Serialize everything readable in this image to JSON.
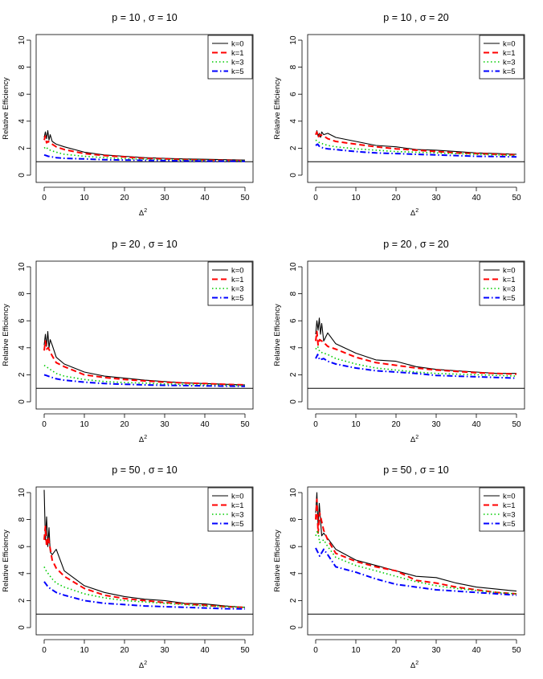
{
  "page": {
    "rows": 3,
    "cols": 2
  },
  "chart_data": [
    {
      "type": "line",
      "title": "p = 10 , σ = 10",
      "xlabel": "Δ",
      "xlabel_sup": "2",
      "ylabel": "Relative Efficiency",
      "xlim": [
        0,
        50
      ],
      "ylim": [
        0,
        10
      ],
      "xticks": [
        0,
        10,
        20,
        30,
        40,
        50
      ],
      "yticks": [
        0,
        2,
        4,
        6,
        8,
        10
      ],
      "reference_line": 1,
      "legend_position": "top-right",
      "series": [
        {
          "name": "k=0",
          "color": "#000000",
          "dash": "solid",
          "x": [
            0,
            0.3,
            0.6,
            0.9,
            1.2,
            1.5,
            2,
            3,
            5,
            10,
            15,
            20,
            25,
            30,
            35,
            40,
            45,
            50
          ],
          "y": [
            2.8,
            3.2,
            2.7,
            3.3,
            2.6,
            3.0,
            2.5,
            2.3,
            2.1,
            1.7,
            1.5,
            1.4,
            1.3,
            1.25,
            1.2,
            1.18,
            1.15,
            1.12
          ]
        },
        {
          "name": "k=1",
          "color": "#ff0000",
          "dash": "dashed",
          "x": [
            0,
            0.3,
            0.6,
            1,
            2,
            3,
            5,
            10,
            15,
            20,
            25,
            30,
            35,
            40,
            45,
            50
          ],
          "y": [
            2.6,
            2.9,
            2.4,
            2.5,
            2.3,
            2.1,
            1.9,
            1.6,
            1.45,
            1.35,
            1.25,
            1.2,
            1.15,
            1.12,
            1.1,
            1.08
          ]
        },
        {
          "name": "k=3",
          "color": "#00cc00",
          "dash": "dotted",
          "x": [
            0,
            0.5,
            1,
            2,
            3,
            5,
            10,
            15,
            20,
            25,
            30,
            35,
            40,
            45,
            50
          ],
          "y": [
            2.0,
            2.1,
            1.9,
            1.8,
            1.7,
            1.55,
            1.4,
            1.3,
            1.22,
            1.18,
            1.14,
            1.12,
            1.1,
            1.08,
            1.06
          ]
        },
        {
          "name": "k=5",
          "color": "#0000ff",
          "dash": "dotdash",
          "x": [
            0,
            0.5,
            1,
            2,
            3,
            5,
            10,
            15,
            20,
            25,
            30,
            35,
            40,
            45,
            50
          ],
          "y": [
            1.5,
            1.45,
            1.4,
            1.35,
            1.3,
            1.25,
            1.2,
            1.15,
            1.12,
            1.1,
            1.08,
            1.06,
            1.05,
            1.04,
            1.03
          ]
        }
      ]
    },
    {
      "type": "line",
      "title": "p = 10 , σ = 20",
      "xlabel": "Δ",
      "xlabel_sup": "2",
      "ylabel": "Relative Efficiency",
      "xlim": [
        0,
        50
      ],
      "ylim": [
        0,
        10
      ],
      "xticks": [
        0,
        10,
        20,
        30,
        40,
        50
      ],
      "yticks": [
        0,
        2,
        4,
        6,
        8,
        10
      ],
      "reference_line": 1,
      "legend_position": "top-right",
      "series": [
        {
          "name": "k=0",
          "color": "#000000",
          "dash": "solid",
          "x": [
            0,
            0.3,
            0.6,
            0.9,
            1.2,
            1.5,
            2,
            3,
            5,
            10,
            15,
            20,
            25,
            30,
            35,
            40,
            45,
            50
          ],
          "y": [
            3.0,
            3.3,
            2.9,
            3.1,
            2.8,
            3.2,
            3.0,
            3.1,
            2.8,
            2.5,
            2.2,
            2.1,
            1.9,
            1.85,
            1.75,
            1.65,
            1.6,
            1.55
          ]
        },
        {
          "name": "k=1",
          "color": "#ff0000",
          "dash": "dashed",
          "x": [
            0,
            0.3,
            0.6,
            1,
            2,
            3,
            5,
            10,
            15,
            20,
            25,
            30,
            35,
            40,
            45,
            50
          ],
          "y": [
            3.0,
            3.2,
            2.8,
            3.0,
            2.9,
            2.7,
            2.5,
            2.3,
            2.1,
            1.95,
            1.85,
            1.75,
            1.65,
            1.6,
            1.55,
            1.5
          ]
        },
        {
          "name": "k=3",
          "color": "#00cc00",
          "dash": "dotted",
          "x": [
            0,
            0.5,
            1,
            2,
            3,
            5,
            10,
            15,
            20,
            25,
            30,
            35,
            40,
            45,
            50
          ],
          "y": [
            2.6,
            2.5,
            2.4,
            2.3,
            2.2,
            2.1,
            1.95,
            1.85,
            1.75,
            1.7,
            1.65,
            1.6,
            1.55,
            1.5,
            1.45
          ]
        },
        {
          "name": "k=5",
          "color": "#0000ff",
          "dash": "dotdash",
          "x": [
            0,
            0.5,
            1,
            2,
            3,
            5,
            10,
            15,
            20,
            25,
            30,
            35,
            40,
            45,
            50
          ],
          "y": [
            2.2,
            2.3,
            2.1,
            2.0,
            1.95,
            1.9,
            1.75,
            1.65,
            1.6,
            1.55,
            1.5,
            1.45,
            1.4,
            1.38,
            1.35
          ]
        }
      ]
    },
    {
      "type": "line",
      "title": "p = 20 , σ = 10",
      "xlabel": "Δ",
      "xlabel_sup": "2",
      "ylabel": "Relative Efficiency",
      "xlim": [
        0,
        50
      ],
      "ylim": [
        0,
        10
      ],
      "xticks": [
        0,
        10,
        20,
        30,
        40,
        50
      ],
      "yticks": [
        0,
        2,
        4,
        6,
        8,
        10
      ],
      "reference_line": 1,
      "legend_position": "top-right",
      "series": [
        {
          "name": "k=0",
          "color": "#000000",
          "dash": "solid",
          "x": [
            0,
            0.3,
            0.6,
            0.9,
            1.2,
            1.5,
            2,
            3,
            5,
            10,
            15,
            20,
            25,
            30,
            35,
            40,
            45,
            50
          ],
          "y": [
            4.2,
            5.0,
            4.1,
            5.2,
            4.0,
            4.6,
            4.2,
            3.3,
            2.8,
            2.2,
            1.9,
            1.75,
            1.6,
            1.5,
            1.4,
            1.35,
            1.3,
            1.25
          ]
        },
        {
          "name": "k=1",
          "color": "#ff0000",
          "dash": "dashed",
          "x": [
            0,
            0.3,
            0.6,
            1,
            2,
            3,
            5,
            10,
            15,
            20,
            25,
            30,
            35,
            40,
            45,
            50
          ],
          "y": [
            3.8,
            4.5,
            3.9,
            4.0,
            3.4,
            2.9,
            2.6,
            2.0,
            1.8,
            1.65,
            1.55,
            1.45,
            1.4,
            1.35,
            1.3,
            1.25
          ]
        },
        {
          "name": "k=3",
          "color": "#00cc00",
          "dash": "dotted",
          "x": [
            0,
            0.5,
            1,
            2,
            3,
            5,
            10,
            15,
            20,
            25,
            30,
            35,
            40,
            45,
            50
          ],
          "y": [
            2.7,
            2.6,
            2.5,
            2.3,
            2.1,
            1.9,
            1.65,
            1.5,
            1.42,
            1.38,
            1.32,
            1.28,
            1.25,
            1.22,
            1.2
          ]
        },
        {
          "name": "k=5",
          "color": "#0000ff",
          "dash": "dotdash",
          "x": [
            0,
            0.5,
            1,
            2,
            3,
            5,
            10,
            15,
            20,
            25,
            30,
            35,
            40,
            45,
            50
          ],
          "y": [
            2.0,
            1.95,
            1.9,
            1.8,
            1.7,
            1.6,
            1.45,
            1.35,
            1.3,
            1.25,
            1.22,
            1.2,
            1.18,
            1.16,
            1.15
          ]
        }
      ]
    },
    {
      "type": "line",
      "title": "p = 20 , σ = 20",
      "xlabel": "Δ",
      "xlabel_sup": "2",
      "ylabel": "Relative Efficiency",
      "xlim": [
        0,
        50
      ],
      "ylim": [
        0,
        10
      ],
      "xticks": [
        0,
        10,
        20,
        30,
        40,
        50
      ],
      "yticks": [
        0,
        2,
        4,
        6,
        8,
        10
      ],
      "reference_line": 1,
      "legend_position": "top-right",
      "series": [
        {
          "name": "k=0",
          "color": "#000000",
          "dash": "solid",
          "x": [
            0,
            0.3,
            0.6,
            0.9,
            1.2,
            1.5,
            2,
            3,
            5,
            10,
            15,
            20,
            25,
            30,
            35,
            40,
            45,
            50
          ],
          "y": [
            5.0,
            6.0,
            5.3,
            6.2,
            5.0,
            5.8,
            4.5,
            5.1,
            4.3,
            3.6,
            3.1,
            3.0,
            2.6,
            2.4,
            2.3,
            2.2,
            2.1,
            2.1
          ]
        },
        {
          "name": "k=1",
          "color": "#ff0000",
          "dash": "dashed",
          "x": [
            0,
            0.3,
            0.6,
            1,
            2,
            3,
            5,
            10,
            15,
            20,
            25,
            30,
            35,
            40,
            45,
            50
          ],
          "y": [
            4.5,
            5.2,
            4.2,
            4.6,
            4.4,
            4.1,
            3.9,
            3.3,
            2.9,
            2.7,
            2.5,
            2.35,
            2.25,
            2.15,
            2.1,
            2.05
          ]
        },
        {
          "name": "k=3",
          "color": "#00cc00",
          "dash": "dotted",
          "x": [
            0,
            0.5,
            1,
            2,
            3,
            5,
            10,
            15,
            20,
            25,
            30,
            35,
            40,
            45,
            50
          ],
          "y": [
            3.9,
            4.1,
            3.7,
            3.6,
            3.5,
            3.2,
            2.8,
            2.5,
            2.35,
            2.2,
            2.1,
            2.05,
            2.0,
            1.95,
            1.9
          ]
        },
        {
          "name": "k=5",
          "color": "#0000ff",
          "dash": "dotdash",
          "x": [
            0,
            0.5,
            1,
            2,
            3,
            5,
            10,
            15,
            20,
            25,
            30,
            35,
            40,
            45,
            50
          ],
          "y": [
            3.2,
            3.5,
            3.1,
            3.2,
            3.0,
            2.8,
            2.5,
            2.3,
            2.2,
            2.1,
            1.95,
            1.9,
            1.85,
            1.8,
            1.75
          ]
        }
      ]
    },
    {
      "type": "line",
      "title": "p = 50 , σ = 10",
      "xlabel": "Δ",
      "xlabel_sup": "2",
      "ylabel": "Relative Efficiency",
      "xlim": [
        0,
        50
      ],
      "ylim": [
        0,
        10
      ],
      "xticks": [
        0,
        10,
        20,
        30,
        40,
        50
      ],
      "yticks": [
        0,
        2,
        4,
        6,
        8,
        10
      ],
      "reference_line": 1,
      "legend_position": "top-right",
      "series": [
        {
          "name": "k=0",
          "color": "#000000",
          "dash": "solid",
          "x": [
            0,
            0.3,
            0.6,
            0.9,
            1.2,
            1.5,
            2,
            3,
            5,
            10,
            15,
            20,
            25,
            30,
            35,
            40,
            45,
            50
          ],
          "y": [
            10.2,
            6.5,
            8.2,
            6.0,
            7.4,
            5.6,
            5.4,
            5.8,
            4.2,
            3.1,
            2.6,
            2.3,
            2.1,
            2.0,
            1.8,
            1.75,
            1.6,
            1.5
          ]
        },
        {
          "name": "k=1",
          "color": "#ff0000",
          "dash": "dashed",
          "x": [
            0,
            0.3,
            0.6,
            1,
            2,
            3,
            5,
            10,
            15,
            20,
            25,
            30,
            35,
            40,
            45,
            50
          ],
          "y": [
            6.5,
            7.5,
            6.0,
            6.7,
            5.0,
            4.4,
            3.8,
            2.9,
            2.4,
            2.15,
            2.0,
            1.85,
            1.75,
            1.65,
            1.55,
            1.5
          ]
        },
        {
          "name": "k=3",
          "color": "#00cc00",
          "dash": "dotted",
          "x": [
            0,
            0.5,
            1,
            2,
            3,
            5,
            10,
            15,
            20,
            25,
            30,
            35,
            40,
            45,
            50
          ],
          "y": [
            4.5,
            4.2,
            4.0,
            3.6,
            3.3,
            3.0,
            2.5,
            2.2,
            2.0,
            1.9,
            1.8,
            1.7,
            1.6,
            1.55,
            1.5
          ]
        },
        {
          "name": "k=5",
          "color": "#0000ff",
          "dash": "dotdash",
          "x": [
            0,
            0.5,
            1,
            2,
            3,
            5,
            10,
            15,
            20,
            25,
            30,
            35,
            40,
            45,
            50
          ],
          "y": [
            3.4,
            3.2,
            3.0,
            2.8,
            2.6,
            2.4,
            2.0,
            1.8,
            1.7,
            1.6,
            1.55,
            1.5,
            1.45,
            1.4,
            1.38
          ]
        }
      ]
    },
    {
      "type": "line",
      "title": "p = 50 , σ = 10",
      "xlabel": "Δ",
      "xlabel_sup": "2",
      "ylabel": "Relative Efficiency",
      "xlim": [
        0,
        50
      ],
      "ylim": [
        0,
        10
      ],
      "xticks": [
        0,
        10,
        20,
        30,
        40,
        50
      ],
      "yticks": [
        0,
        2,
        4,
        6,
        8,
        10
      ],
      "reference_line": 1,
      "legend_position": "top-right",
      "series": [
        {
          "name": "k=0",
          "color": "#000000",
          "dash": "solid",
          "x": [
            0,
            0.3,
            0.6,
            0.9,
            1.2,
            1.5,
            2,
            3,
            5,
            10,
            15,
            20,
            25,
            30,
            35,
            40,
            45,
            50
          ],
          "y": [
            8.5,
            10.0,
            7.5,
            9.2,
            8.0,
            6.8,
            7.0,
            6.6,
            5.8,
            5.0,
            4.6,
            4.2,
            3.8,
            3.7,
            3.3,
            3.0,
            2.85,
            2.7
          ]
        },
        {
          "name": "k=1",
          "color": "#ff0000",
          "dash": "dashed",
          "x": [
            0,
            0.3,
            0.6,
            1,
            2,
            3,
            5,
            10,
            15,
            20,
            25,
            30,
            35,
            40,
            45,
            50
          ],
          "y": [
            8.0,
            9.5,
            7.0,
            8.5,
            7.2,
            6.5,
            5.5,
            4.9,
            4.5,
            4.2,
            3.5,
            3.3,
            3.0,
            2.8,
            2.6,
            2.5
          ]
        },
        {
          "name": "k=3",
          "color": "#00cc00",
          "dash": "dotted",
          "x": [
            0,
            0.5,
            1,
            2,
            3,
            5,
            10,
            15,
            20,
            25,
            30,
            35,
            40,
            45,
            50
          ],
          "y": [
            6.8,
            7.2,
            6.3,
            6.5,
            6.0,
            5.2,
            4.6,
            4.2,
            3.8,
            3.4,
            3.1,
            2.9,
            2.75,
            2.6,
            2.5
          ]
        },
        {
          "name": "k=5",
          "color": "#0000ff",
          "dash": "dotdash",
          "x": [
            0,
            0.5,
            1,
            2,
            3,
            5,
            10,
            15,
            20,
            25,
            30,
            35,
            40,
            45,
            50
          ],
          "y": [
            5.9,
            5.6,
            5.3,
            5.8,
            5.4,
            4.5,
            4.1,
            3.6,
            3.2,
            3.0,
            2.8,
            2.7,
            2.6,
            2.5,
            2.4
          ]
        }
      ]
    }
  ]
}
